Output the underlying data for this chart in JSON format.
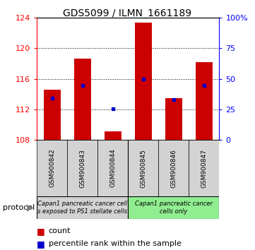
{
  "title": "GDS5099 / ILMN_1661189",
  "categories": [
    "GSM900842",
    "GSM900843",
    "GSM900844",
    "GSM900845",
    "GSM900846",
    "GSM900847"
  ],
  "bar_heights": [
    114.6,
    118.6,
    109.1,
    123.3,
    113.5,
    118.2
  ],
  "bar_base": 108.0,
  "blue_markers": [
    113.5,
    115.1,
    112.1,
    116.0,
    113.3,
    115.1
  ],
  "ylim_left": [
    108,
    124
  ],
  "ylim_right": [
    0,
    100
  ],
  "yticks_left": [
    108,
    112,
    116,
    120,
    124
  ],
  "yticks_right": [
    0,
    25,
    50,
    75,
    100
  ],
  "bar_color": "#cc0000",
  "blue_color": "#0000cc",
  "group1_label": "Capan1 pancreatic cancer cell\ns exposed to PS1 stellate cells",
  "group2_label": "Capan1 pancreatic cancer\ncells only",
  "protocol_label": "protocol",
  "legend_count": "count",
  "legend_pct": "percentile rank within the sample",
  "background_color": "#ffffff",
  "group1_bg": "#d3d3d3",
  "group2_bg": "#90ee90",
  "bar_width": 0.55,
  "title_fontsize": 10,
  "tick_fontsize": 8,
  "label_fontsize": 6.5,
  "proto_fontsize": 6.0,
  "legend_fontsize": 8
}
